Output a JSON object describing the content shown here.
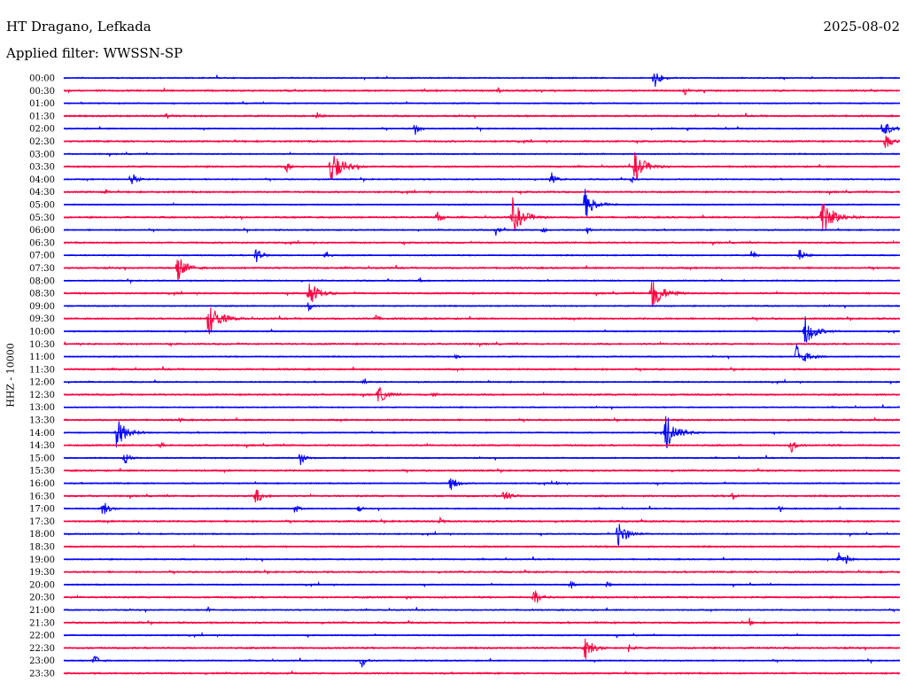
{
  "header": {
    "station": "HT Dragano, Lefkada",
    "date": "2025-08-02",
    "filter": "Applied filter: WWSSN-SP"
  },
  "chart_data": {
    "type": "line",
    "title": "HT Dragano, Lefkada",
    "subtitle": "Applied filter: WWSSN-SP",
    "ylabel": "HHZ - 10000",
    "row_minutes": 30,
    "colors": {
      "even": "#0000ff",
      "odd": "#ff0040"
    },
    "row_labels": [
      "00:00",
      "00:30",
      "01:00",
      "01:30",
      "02:00",
      "02:30",
      "03:00",
      "03:30",
      "04:00",
      "04:30",
      "05:00",
      "05:30",
      "06:00",
      "06:30",
      "07:00",
      "07:30",
      "08:00",
      "08:30",
      "09:00",
      "09:30",
      "10:00",
      "10:30",
      "11:00",
      "11:30",
      "12:00",
      "12:30",
      "13:00",
      "13:30",
      "14:00",
      "14:30",
      "15:00",
      "15:30",
      "16:00",
      "16:30",
      "17:00",
      "17:30",
      "18:00",
      "18:30",
      "19:00",
      "19:30",
      "20:00",
      "20:30",
      "21:00",
      "21:30",
      "22:00",
      "22:30",
      "23:00",
      "23:30"
    ],
    "events": [
      [
        0,
        21.2,
        12
      ],
      [
        1,
        22.3,
        4
      ],
      [
        1,
        15.6,
        3
      ],
      [
        3,
        3.7,
        4
      ],
      [
        3,
        9.1,
        4
      ],
      [
        4,
        12.6,
        8
      ],
      [
        4,
        29.4,
        12
      ],
      [
        4,
        22.4,
        2
      ],
      [
        4,
        23.8,
        2
      ],
      [
        5,
        29.5,
        10
      ],
      [
        7,
        8.0,
        6
      ],
      [
        7,
        9.6,
        20
      ],
      [
        7,
        20.5,
        18
      ],
      [
        8,
        2.4,
        10
      ],
      [
        8,
        17.5,
        8
      ],
      [
        8,
        20.4,
        3
      ],
      [
        9,
        1.5,
        3
      ],
      [
        10,
        18.7,
        18
      ],
      [
        11,
        13.4,
        8
      ],
      [
        11,
        16.1,
        20
      ],
      [
        11,
        27.2,
        22
      ],
      [
        12,
        15.5,
        6
      ],
      [
        12,
        17.2,
        4
      ],
      [
        12,
        18.8,
        4
      ],
      [
        14,
        6.9,
        10
      ],
      [
        14,
        9.4,
        6
      ],
      [
        14,
        24.7,
        6
      ],
      [
        14,
        26.4,
        8
      ],
      [
        15,
        4.1,
        16
      ],
      [
        16,
        12.8,
        4
      ],
      [
        17,
        8.8,
        16
      ],
      [
        17,
        21.1,
        20
      ],
      [
        18,
        8.8,
        6
      ],
      [
        19,
        5.2,
        20
      ],
      [
        19,
        11.2,
        5
      ],
      [
        20,
        26.6,
        18
      ],
      [
        22,
        26.3,
        16
      ],
      [
        22,
        14.1,
        3
      ],
      [
        24,
        10.8,
        4
      ],
      [
        25,
        11.3,
        12
      ],
      [
        25,
        13.3,
        4
      ],
      [
        27,
        4.2,
        3
      ],
      [
        28,
        1.9,
        18
      ],
      [
        28,
        21.6,
        20
      ],
      [
        29,
        3.5,
        4
      ],
      [
        29,
        26.1,
        8
      ],
      [
        30,
        2.2,
        8
      ],
      [
        30,
        8.5,
        8
      ],
      [
        32,
        13.9,
        10
      ],
      [
        32,
        17.7,
        3
      ],
      [
        33,
        6.9,
        10
      ],
      [
        33,
        15.8,
        10
      ],
      [
        33,
        24.0,
        6
      ],
      [
        34,
        1.4,
        10
      ],
      [
        34,
        8.3,
        6
      ],
      [
        34,
        10.6,
        4
      ],
      [
        34,
        25.7,
        4
      ],
      [
        35,
        13.5,
        4
      ],
      [
        36,
        19.9,
        16
      ],
      [
        38,
        27.8,
        8
      ],
      [
        38,
        28.1,
        6
      ],
      [
        40,
        18.2,
        5
      ],
      [
        40,
        19.5,
        4
      ],
      [
        41,
        16.9,
        10
      ],
      [
        41,
        12.3,
        3
      ],
      [
        42,
        5.2,
        3
      ],
      [
        43,
        24.6,
        5
      ],
      [
        45,
        18.7,
        14
      ],
      [
        45,
        20.3,
        6
      ],
      [
        46,
        1.1,
        8
      ],
      [
        46,
        10.7,
        8
      ]
    ]
  }
}
